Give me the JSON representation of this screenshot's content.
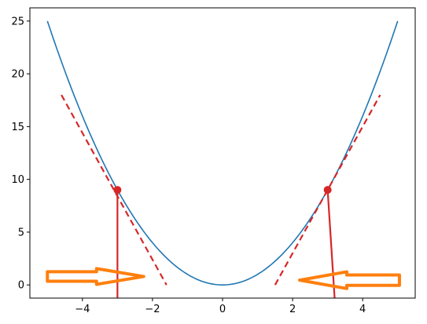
{
  "chart_data": {
    "type": "line",
    "xlim": [
      -5.5,
      5.5
    ],
    "ylim": [
      -1.25,
      26.25
    ],
    "x_ticks": [
      -4,
      -2,
      0,
      2,
      4
    ],
    "y_ticks": [
      0,
      5,
      10,
      15,
      20,
      25
    ],
    "x_tick_labels": [
      "−4",
      "−2",
      "0",
      "2",
      "4"
    ],
    "y_tick_labels": [
      "0",
      "5",
      "10",
      "15",
      "20",
      "25"
    ],
    "grid": false,
    "series": [
      {
        "function": "y = x^2",
        "x_range": [
          -5,
          5
        ],
        "color": "#1f77b4",
        "style": "solid"
      }
    ],
    "tangent_lines": [
      {
        "x": [
          -4.6,
          -1.6
        ],
        "y": [
          18,
          0
        ],
        "color": "#d62728",
        "style": "dashed"
      },
      {
        "x": [
          1.5,
          4.5
        ],
        "y": [
          0,
          18
        ],
        "color": "#d62728",
        "style": "dashed"
      }
    ],
    "points": [
      {
        "x": -3,
        "y": 9,
        "color": "#d62728"
      },
      {
        "x": 3,
        "y": 9,
        "color": "#d62728"
      }
    ],
    "vertical_lines": [
      {
        "x": [
          -3,
          -3
        ],
        "y": [
          9,
          -1.25
        ],
        "color": "#d62728"
      },
      {
        "x": [
          3,
          3.2
        ],
        "y": [
          9,
          -1.25
        ],
        "color": "#d62728"
      }
    ],
    "arrows": [
      {
        "direction": "right",
        "x": [
          -5,
          -2.25
        ],
        "y": [
          0.3,
          1.3
        ],
        "color": "#ff7f0e"
      },
      {
        "direction": "left",
        "x": [
          2.2,
          5.05
        ],
        "y": [
          -0.1,
          1.0
        ],
        "color": "#ff7f0e"
      }
    ]
  }
}
